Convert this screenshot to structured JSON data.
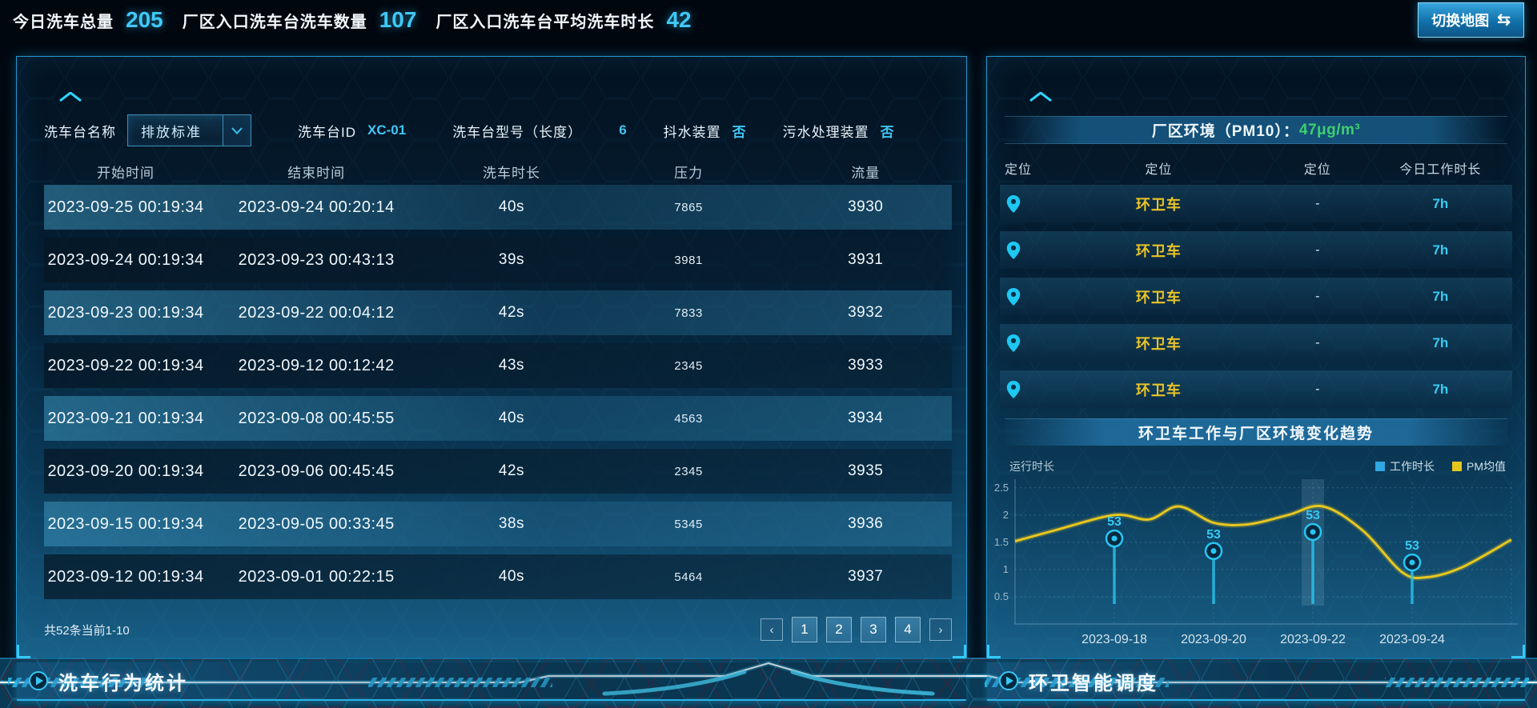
{
  "topbar": {
    "stats": [
      {
        "label": "今日洗车总量",
        "value": "205"
      },
      {
        "label": "厂区入口洗车台洗车数量",
        "value": "107"
      },
      {
        "label": "厂区入口洗车台平均洗车时长",
        "value": "42"
      }
    ],
    "map_button": {
      "label": "切换地图",
      "icon": "⇆"
    }
  },
  "wash_panel": {
    "title": "洗车行为统计",
    "filters": {
      "name_label": "洗车台名称",
      "name_value": "排放标准",
      "id_label": "洗车台ID",
      "id_value": "XC-01",
      "model_label": "洗车台型号（长度）",
      "model_value": "6",
      "shake_label": "抖水装置",
      "shake_value": "否",
      "sewage_label": "污水处理装置",
      "sewage_value": "否"
    },
    "table": {
      "headers": [
        "开始时间",
        "结束时间",
        "洗车时长",
        "压力",
        "流量"
      ],
      "rows": [
        [
          "2023-09-25 00:19:34",
          "2023-09-24 00:20:14",
          "40s",
          "7865",
          "3930"
        ],
        [
          "2023-09-24 00:19:34",
          "2023-09-23 00:43:13",
          "39s",
          "3981",
          "3931"
        ],
        [
          "2023-09-23 00:19:34",
          "2023-09-22 00:04:12",
          "42s",
          "7833",
          "3932"
        ],
        [
          "2023-09-22 00:19:34",
          "2023-09-12 00:12:42",
          "43s",
          "2345",
          "3933"
        ],
        [
          "2023-09-21 00:19:34",
          "2023-09-08 00:45:55",
          "40s",
          "4563",
          "3934"
        ],
        [
          "2023-09-20 00:19:34",
          "2023-09-06 00:45:45",
          "42s",
          "2345",
          "3935"
        ],
        [
          "2023-09-15 00:19:34",
          "2023-09-05 00:33:45",
          "38s",
          "5345",
          "3936"
        ],
        [
          "2023-09-12 00:19:34",
          "2023-09-01 00:22:15",
          "40s",
          "5464",
          "3937"
        ]
      ]
    },
    "pagination": {
      "summary": "共52条当前1-10",
      "prev": "‹",
      "pages": [
        "1",
        "2",
        "3",
        "4"
      ],
      "next": "›"
    }
  },
  "dispatch_panel": {
    "title": "环卫智能调度",
    "pm_banner": {
      "label": "厂区环境（PM10）：",
      "value": "47μg/m³",
      "value_color": "#3ed06e"
    },
    "table": {
      "headers": [
        "定位",
        "定位",
        "定位",
        "今日工作时长"
      ],
      "rows": [
        {
          "vehicle": "环卫车",
          "location": "-",
          "hours": "7h"
        },
        {
          "vehicle": "环卫车",
          "location": "-",
          "hours": "7h"
        },
        {
          "vehicle": "环卫车",
          "location": "-",
          "hours": "7h"
        },
        {
          "vehicle": "环卫车",
          "location": "-",
          "hours": "7h"
        },
        {
          "vehicle": "环卫车",
          "location": "-",
          "hours": "7h"
        }
      ]
    },
    "trend_title": "环卫车工作与厂区环境变化趋势"
  },
  "chart_data": {
    "type": "line",
    "title": "环卫车工作与厂区环境变化趋势",
    "ylabel": "运行时长",
    "categories": [
      "2023-09-18",
      "2023-09-20",
      "2023-09-22",
      "2023-09-24"
    ],
    "category_x": [
      0.2,
      0.4,
      0.6,
      0.8
    ],
    "ylim": [
      0,
      2.6
    ],
    "yticks": [
      0.5,
      1,
      1.5,
      2,
      2.5
    ],
    "grid": true,
    "legend_position": "top-right",
    "highlight_category_index": 2,
    "legend": [
      {
        "label": "工作时长",
        "color": "#2fa7e0"
      },
      {
        "label": "PM均值",
        "color": "#e7c71f"
      }
    ],
    "series": [
      {
        "name": "工作时长",
        "render": "lollipop",
        "color": "#27c6f3",
        "x": [
          0.2,
          0.4,
          0.6,
          0.8
        ],
        "values": [
          1.57,
          1.34,
          1.69,
          1.13
        ],
        "point_labels": [
          "53",
          "53",
          "53",
          "53"
        ]
      },
      {
        "name": "PM均值",
        "render": "smooth_line",
        "color": "#e7c71f",
        "points": [
          [
            0,
            1.52
          ],
          [
            0.08,
            1.72
          ],
          [
            0.2,
            2.0
          ],
          [
            0.27,
            1.92
          ],
          [
            0.33,
            2.16
          ],
          [
            0.4,
            1.86
          ],
          [
            0.47,
            1.83
          ],
          [
            0.55,
            2.0
          ],
          [
            0.62,
            2.16
          ],
          [
            0.7,
            1.72
          ],
          [
            0.78,
            0.95
          ],
          [
            0.83,
            0.86
          ],
          [
            0.9,
            1.04
          ],
          [
            1,
            1.55
          ]
        ]
      }
    ]
  }
}
